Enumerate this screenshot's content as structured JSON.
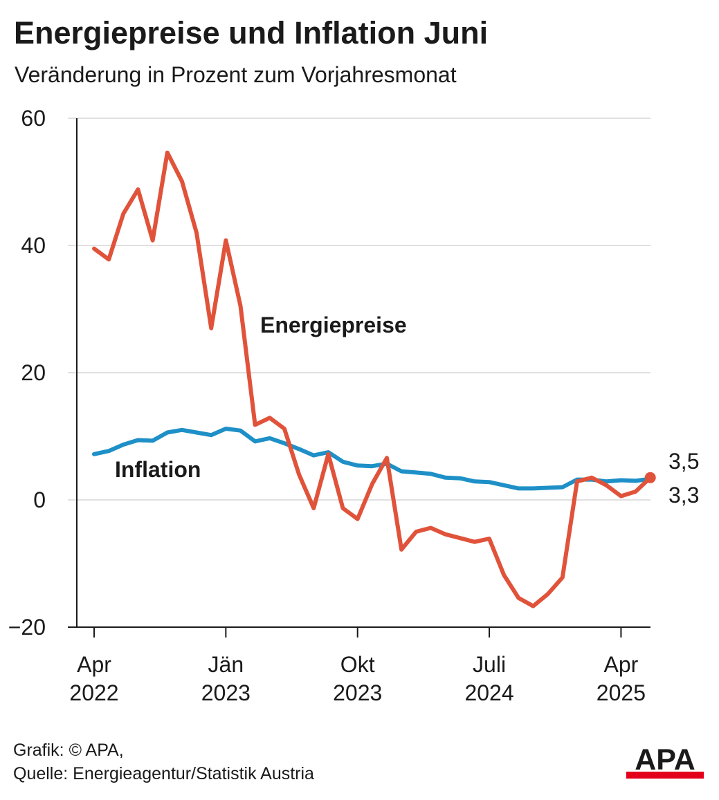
{
  "title": "Energiepreise und Inflation Juni",
  "subtitle": "Veränderung in Prozent zum Vorjahresmonat",
  "footer": {
    "credit": "Grafik: © APA,",
    "source": "Quelle: Energieagentur/Statistik Austria"
  },
  "logo": {
    "text": "APA",
    "colors": {
      "dark": "#1a1a1a",
      "red": "#e2001a"
    }
  },
  "chart_data": {
    "type": "line",
    "title": "Energiepreise und Inflation Juni",
    "subtitle": "Veränderung in Prozent zum Vorjahresmonat",
    "ylim": [
      -20,
      60
    ],
    "yticks": [
      {
        "value": 60,
        "label": "60"
      },
      {
        "value": 40,
        "label": "40"
      },
      {
        "value": 20,
        "label": "20"
      },
      {
        "value": 0,
        "label": "0"
      },
      {
        "value": -20,
        "label": "−20"
      }
    ],
    "grid": true,
    "x_start": "Apr 2022",
    "x_end": "Jun 2025",
    "xticks": [
      {
        "index": 0,
        "line1": "Apr",
        "line2": "2022"
      },
      {
        "index": 9,
        "line1": "Jän",
        "line2": "2023"
      },
      {
        "index": 18,
        "line1": "Okt",
        "line2": "2023"
      },
      {
        "index": 27,
        "line1": "Juli",
        "line2": "2024"
      },
      {
        "index": 36,
        "line1": "Apr",
        "line2": "2025"
      }
    ],
    "series": [
      {
        "name": "Energiepreise",
        "label": "Energiepreise",
        "color": "#e0533a",
        "values": [
          39.5,
          37.8,
          45.0,
          48.8,
          40.8,
          54.6,
          50.1,
          42.0,
          27.0,
          40.8,
          30.5,
          11.8,
          12.9,
          11.2,
          4.0,
          -1.3,
          7.2,
          -1.3,
          -3.0,
          2.5,
          6.6,
          -7.8,
          -5.0,
          -4.4,
          -5.4,
          -6.0,
          -6.6,
          -6.1,
          -11.8,
          -15.4,
          -16.7,
          -14.8,
          -12.2,
          2.9,
          3.5,
          2.3,
          0.6,
          1.3,
          3.5
        ],
        "end_value": 3.5,
        "end_label": "3,5"
      },
      {
        "name": "Inflation",
        "label": "Inflation",
        "color": "#1e90c7",
        "values": [
          7.2,
          7.7,
          8.7,
          9.4,
          9.3,
          10.6,
          11.0,
          10.6,
          10.2,
          11.2,
          10.9,
          9.2,
          9.7,
          8.9,
          8.0,
          7.0,
          7.5,
          6.0,
          5.4,
          5.3,
          5.7,
          4.5,
          4.3,
          4.1,
          3.5,
          3.4,
          2.9,
          2.8,
          2.3,
          1.8,
          1.8,
          1.9,
          2.0,
          3.2,
          3.2,
          2.9,
          3.1,
          3.0,
          3.3
        ],
        "end_value": 3.3,
        "end_label": "3,3"
      }
    ]
  }
}
